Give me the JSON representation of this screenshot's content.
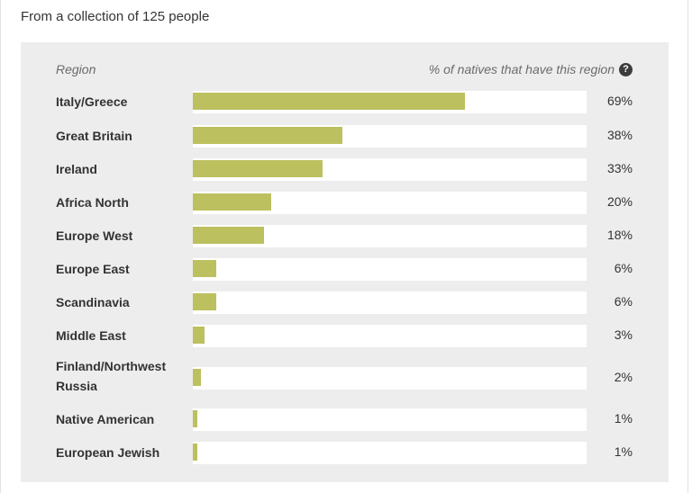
{
  "caption": "From a collection of 125 people",
  "header": {
    "region_label": "Region",
    "percent_label": "% of natives that have this region",
    "help_icon": "question-circle-icon"
  },
  "colors": {
    "bar": "#bcc05e",
    "track": "#ffffff",
    "panel": "#ededed"
  },
  "chart_data": {
    "type": "bar",
    "orientation": "horizontal",
    "categories": [
      "Italy/Greece",
      "Great Britain",
      "Ireland",
      "Africa North",
      "Europe West",
      "Europe East",
      "Scandinavia",
      "Middle East",
      "Finland/Northwest Russia",
      "Native American",
      "European Jewish"
    ],
    "values": [
      69,
      38,
      33,
      20,
      18,
      6,
      6,
      3,
      2,
      1,
      1
    ],
    "value_labels": [
      "69%",
      "38%",
      "33%",
      "20%",
      "18%",
      "6%",
      "6%",
      "3%",
      "2%",
      "1%",
      "1%"
    ],
    "xlim": [
      0,
      100
    ],
    "grid": false,
    "legend": "none"
  }
}
